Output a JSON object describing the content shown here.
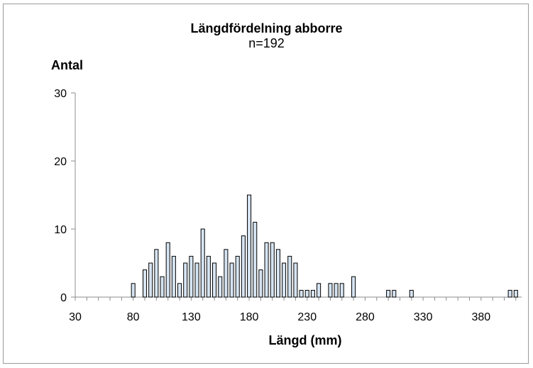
{
  "chart_data": {
    "type": "bar",
    "title": "Längdfördelning abborre",
    "subtitle": "n=192",
    "xlabel": "Längd (mm)",
    "ylabel": "Antal",
    "xlim": [
      30,
      415
    ],
    "ylim": [
      0,
      30
    ],
    "x_ticks": [
      30,
      80,
      130,
      180,
      230,
      280,
      330,
      380
    ],
    "y_ticks": [
      0,
      10,
      20,
      30
    ],
    "bin_width": 5,
    "grid": false,
    "legend": "none",
    "bar_color": "#d6e4f2",
    "bar_stroke": "#000000",
    "bins": [
      80,
      85,
      90,
      95,
      100,
      105,
      110,
      115,
      120,
      125,
      130,
      135,
      140,
      145,
      150,
      155,
      160,
      165,
      170,
      175,
      180,
      185,
      190,
      195,
      200,
      205,
      210,
      215,
      220,
      225,
      230,
      235,
      240,
      245,
      250,
      255,
      260,
      265,
      270,
      275,
      280,
      285,
      290,
      295,
      300,
      305,
      310,
      315,
      320,
      325,
      330,
      335,
      340,
      345,
      350,
      355,
      360,
      365,
      370,
      375,
      380,
      385,
      390,
      395,
      400,
      405,
      410
    ],
    "values": [
      2,
      0,
      4,
      5,
      7,
      3,
      8,
      6,
      2,
      5,
      6,
      5,
      10,
      6,
      5,
      3,
      7,
      5,
      6,
      9,
      15,
      11,
      4,
      8,
      8,
      7,
      5,
      6,
      5,
      1,
      1,
      1,
      2,
      0,
      2,
      2,
      2,
      0,
      3,
      0,
      0,
      0,
      0,
      0,
      1,
      1,
      0,
      0,
      1,
      0,
      0,
      0,
      0,
      0,
      0,
      0,
      0,
      0,
      0,
      0,
      0,
      0,
      0,
      0,
      0,
      1,
      1
    ]
  }
}
